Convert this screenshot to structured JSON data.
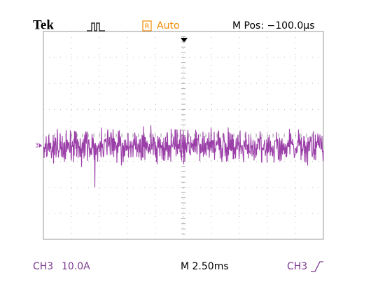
{
  "header": {
    "brand": "Tek",
    "trigger_badge": "R",
    "trigger_mode": "Auto",
    "position": "M Pos: −100.0µs"
  },
  "footer": {
    "channel": "CH3",
    "scale": "10.0A",
    "timebase": "M 2.50ms",
    "trigger_source": "CH3"
  },
  "channel_marker": "3"
}
